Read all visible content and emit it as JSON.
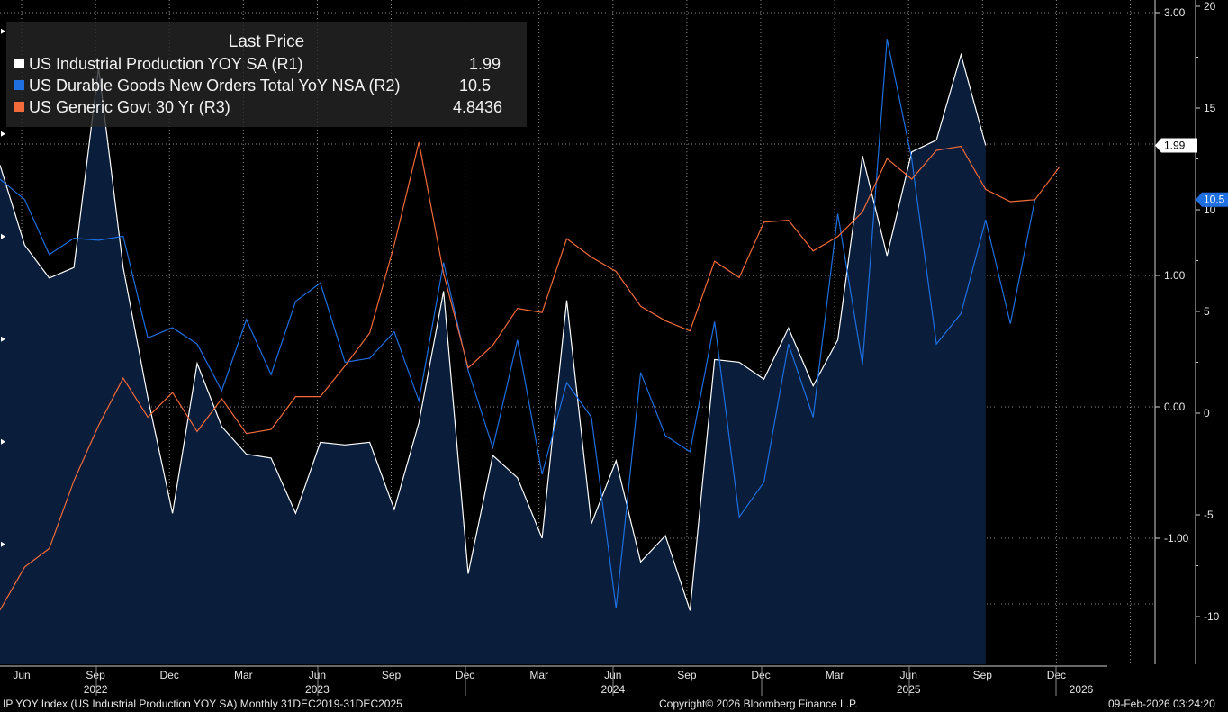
{
  "chart_data": {
    "type": "line",
    "legend": {
      "title": "Last Price",
      "entries": [
        {
          "label": "US Industrial Production YOY SA  (R1)",
          "value": "1.99",
          "color": "#ffffff"
        },
        {
          "label": "US Durable Goods New Orders Total YoY NSA  (R2)",
          "value": "10.5",
          "color": "#1f6fe0"
        },
        {
          "label": "US Generic Govt 30 Yr  (R3)",
          "value": "4.8436",
          "color": "#f26b3a"
        }
      ]
    },
    "x_labels": [
      {
        "month": "Jun",
        "year": ""
      },
      {
        "month": "Sep",
        "year": "2022"
      },
      {
        "month": "Dec",
        "year": ""
      },
      {
        "month": "Mar",
        "year": ""
      },
      {
        "month": "Jun",
        "year": "2023"
      },
      {
        "month": "Sep",
        "year": ""
      },
      {
        "month": "Dec",
        "year": ""
      },
      {
        "month": "Mar",
        "year": ""
      },
      {
        "month": "Jun",
        "year": "2024"
      },
      {
        "month": "Sep",
        "year": ""
      },
      {
        "month": "Dec",
        "year": ""
      },
      {
        "month": "Mar",
        "year": ""
      },
      {
        "month": "Jun",
        "year": "2025"
      },
      {
        "month": "Sep",
        "year": ""
      },
      {
        "month": "Dec",
        "year": ""
      },
      {
        "month": "",
        "year": "2026"
      }
    ],
    "axes": {
      "r1": {
        "ticks": [
          "3.00",
          "1.00",
          "0.00",
          "-1.00"
        ],
        "tick_values": [
          3,
          1,
          0,
          -1
        ],
        "range": [
          -1.95,
          3.05
        ]
      },
      "r2": {
        "ticks": [
          "20",
          "15",
          "10",
          "5",
          "0",
          "-5",
          "-10"
        ],
        "tick_values": [
          20,
          15,
          10,
          5,
          0,
          -5,
          -10
        ],
        "range": [
          -12,
          20
        ]
      }
    },
    "series": [
      {
        "name": "US Industrial Production YOY SA (R1)",
        "color": "#ffffff",
        "area_fill": "#0a1e3b",
        "axis": "r1",
        "values": [
          1.84,
          1.23,
          0.98,
          1.06,
          2.58,
          1.06,
          0.07,
          -0.81,
          0.33,
          -0.15,
          -0.36,
          -0.39,
          -0.81,
          -0.27,
          -0.29,
          -0.27,
          -0.78,
          -0.12,
          0.88,
          -1.27,
          -0.37,
          -0.54,
          -1.0,
          0.81,
          -0.89,
          -0.41,
          -1.18,
          -0.98,
          -1.55,
          0.36,
          0.34,
          0.21,
          0.6,
          0.16,
          0.51,
          1.91,
          1.15,
          1.94,
          2.03,
          2.68,
          1.99
        ],
        "last_label": "1.99"
      },
      {
        "name": "US Durable Goods New Orders Total YoY NSA (R2)",
        "color": "#1f6fe0",
        "axis": "r2",
        "values": [
          11.5,
          10.5,
          7.8,
          8.6,
          8.5,
          8.7,
          3.7,
          4.2,
          3.4,
          1.1,
          4.6,
          1.9,
          5.5,
          6.4,
          2.5,
          2.7,
          4.0,
          0.6,
          7.4,
          2.1,
          -1.7,
          3.6,
          -3.0,
          1.5,
          -0.2,
          -9.6,
          2.0,
          -1.1,
          -1.9,
          4.5,
          -5.1,
          -3.4,
          3.4,
          -0.2,
          9.8,
          2.4,
          18.4,
          12.5,
          3.4,
          4.9,
          9.5,
          4.4,
          10.5
        ],
        "last_label": "10.5"
      },
      {
        "name": "US Generic Govt 30 Yr (R3)",
        "color": "#f26b3a",
        "axis": "r3",
        "values": [
          2.68,
          2.89,
          2.98,
          3.31,
          3.58,
          3.81,
          3.62,
          3.74,
          3.55,
          3.71,
          3.54,
          3.56,
          3.72,
          3.72,
          3.87,
          4.03,
          4.46,
          4.96,
          4.32,
          3.86,
          3.97,
          4.15,
          4.13,
          4.49,
          4.4,
          4.33,
          4.16,
          4.09,
          4.04,
          4.38,
          4.3,
          4.57,
          4.58,
          4.43,
          4.5,
          4.62,
          4.88,
          4.78,
          4.92,
          4.94,
          4.73,
          4.67,
          4.68,
          4.84
        ],
        "last_label": "4.8436"
      }
    ]
  },
  "footer": {
    "source": "IP YOY Index (US Industrial Production YOY SA) Monthly 31DEC2019-31DEC2025",
    "copyright": "Copyright© 2026 Bloomberg Finance L.P.",
    "timestamp": "09-Feb-2026 03:24:20"
  }
}
